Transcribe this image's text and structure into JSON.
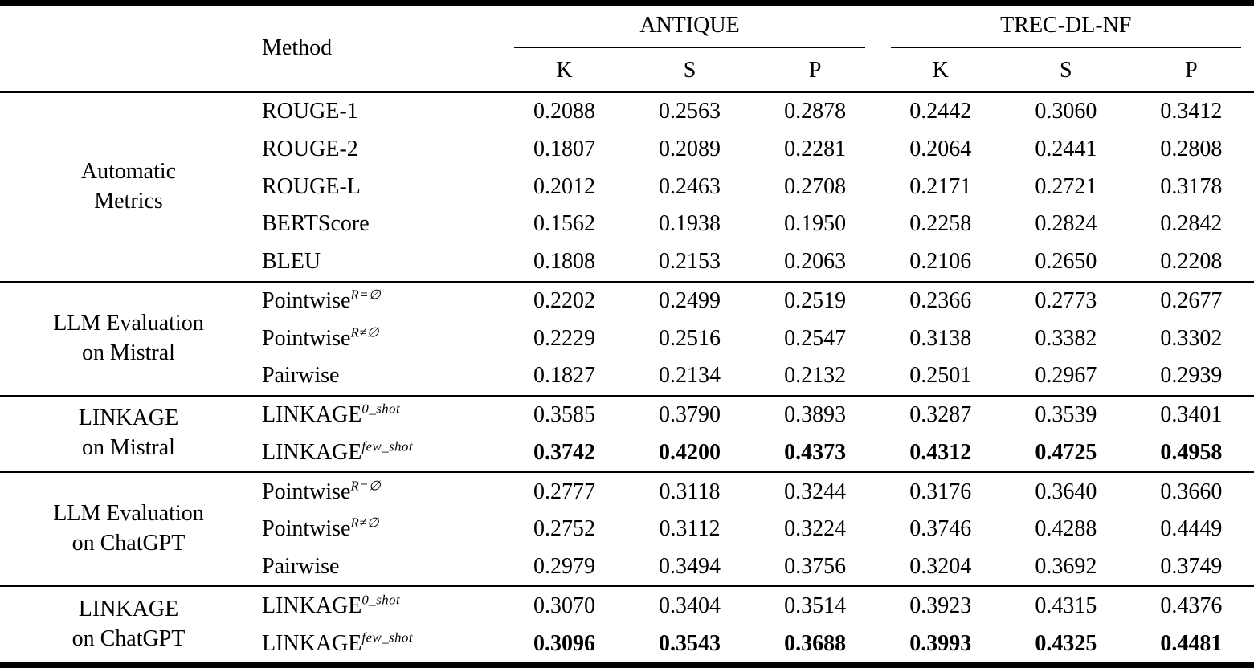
{
  "table": {
    "method_header": "Method",
    "datasets": [
      {
        "label": "ANTIQUE",
        "subcols": [
          "K",
          "S",
          "P"
        ]
      },
      {
        "label": "TREC-DL-NF",
        "subcols": [
          "K",
          "S",
          "P"
        ]
      }
    ],
    "groups": [
      {
        "label_line1": "Automatic",
        "label_line2": "Metrics",
        "rows": [
          {
            "method": "ROUGE-1",
            "sup": "",
            "values": [
              "0.2088",
              "0.2563",
              "0.2878",
              "0.2442",
              "0.3060",
              "0.3412"
            ]
          },
          {
            "method": "ROUGE-2",
            "sup": "",
            "values": [
              "0.1807",
              "0.2089",
              "0.2281",
              "0.2064",
              "0.2441",
              "0.2808"
            ]
          },
          {
            "method": "ROUGE-L",
            "sup": "",
            "values": [
              "0.2012",
              "0.2463",
              "0.2708",
              "0.2171",
              "0.2721",
              "0.3178"
            ]
          },
          {
            "method": "BERTScore",
            "sup": "",
            "values": [
              "0.1562",
              "0.1938",
              "0.1950",
              "0.2258",
              "0.2824",
              "0.2842"
            ]
          },
          {
            "method": "BLEU",
            "sup": "",
            "values": [
              "0.1808",
              "0.2153",
              "0.2063",
              "0.2106",
              "0.2650",
              "0.2208"
            ]
          }
        ]
      },
      {
        "label_line1": "LLM Evaluation",
        "label_line2": "on Mistral",
        "rows": [
          {
            "method": "Pointwise",
            "sup": "R=∅",
            "values": [
              "0.2202",
              "0.2499",
              "0.2519",
              "0.2366",
              "0.2773",
              "0.2677"
            ]
          },
          {
            "method": "Pointwise",
            "sup": "R≠∅",
            "values": [
              "0.2229",
              "0.2516",
              "0.2547",
              "0.3138",
              "0.3382",
              "0.3302"
            ]
          },
          {
            "method": "Pairwise",
            "sup": "",
            "values": [
              "0.1827",
              "0.2134",
              "0.2132",
              "0.2501",
              "0.2967",
              "0.2939"
            ]
          }
        ]
      },
      {
        "label_line1": "LINKAGE",
        "label_line2": "on Mistral",
        "rows": [
          {
            "method": "LINKAGE",
            "sup": "0_shot",
            "values": [
              "0.3585",
              "0.3790",
              "0.3893",
              "0.3287",
              "0.3539",
              "0.3401"
            ]
          },
          {
            "method": "LINKAGE",
            "sup": "few_shot",
            "values": [
              "0.3742",
              "0.4200",
              "0.4373",
              "0.4312",
              "0.4725",
              "0.4958"
            ],
            "bold": true
          }
        ]
      },
      {
        "label_line1": "LLM Evaluation",
        "label_line2": "on ChatGPT",
        "rows": [
          {
            "method": "Pointwise",
            "sup": "R=∅",
            "values": [
              "0.2777",
              "0.3118",
              "0.3244",
              "0.3176",
              "0.3640",
              "0.3660"
            ]
          },
          {
            "method": "Pointwise",
            "sup": "R≠∅",
            "values": [
              "0.2752",
              "0.3112",
              "0.3224",
              "0.3746",
              "0.4288",
              "0.4449"
            ]
          },
          {
            "method": "Pairwise",
            "sup": "",
            "values": [
              "0.2979",
              "0.3494",
              "0.3756",
              "0.3204",
              "0.3692",
              "0.3749"
            ]
          }
        ]
      },
      {
        "label_line1": "LINKAGE",
        "label_line2": "on ChatGPT",
        "rows": [
          {
            "method": "LINKAGE",
            "sup": "0_shot",
            "values": [
              "0.3070",
              "0.3404",
              "0.3514",
              "0.3923",
              "0.4315",
              "0.4376"
            ]
          },
          {
            "method": "LINKAGE",
            "sup": "few_shot",
            "values": [
              "0.3096",
              "0.3543",
              "0.3688",
              "0.3993",
              "0.4325",
              "0.4481"
            ],
            "bold": true
          }
        ]
      }
    ]
  }
}
